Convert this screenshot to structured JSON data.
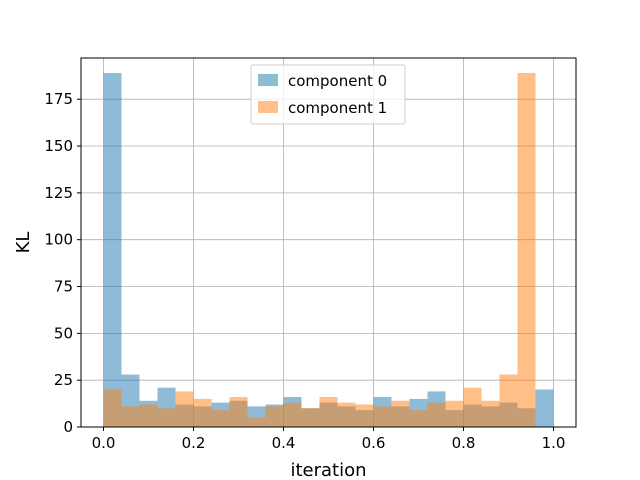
{
  "chart_data": {
    "type": "histogram",
    "title": "",
    "xlabel": "iteration",
    "ylabel": "KL",
    "xlim": [
      -0.05,
      1.05
    ],
    "ylim": [
      0,
      197
    ],
    "grid": true,
    "legend_position": "top-center",
    "bins": {
      "start": 0.0,
      "end": 1.0,
      "count": 25
    },
    "x_ticks": [
      {
        "value": 0.0,
        "label": "0.0"
      },
      {
        "value": 0.2,
        "label": "0.2"
      },
      {
        "value": 0.4,
        "label": "0.4"
      },
      {
        "value": 0.6,
        "label": "0.6"
      },
      {
        "value": 0.8,
        "label": "0.8"
      },
      {
        "value": 1.0,
        "label": "1.0"
      }
    ],
    "y_ticks": [
      {
        "value": 0,
        "label": "0"
      },
      {
        "value": 25,
        "label": "25"
      },
      {
        "value": 50,
        "label": "50"
      },
      {
        "value": 75,
        "label": "75"
      },
      {
        "value": 100,
        "label": "100"
      },
      {
        "value": 125,
        "label": "125"
      },
      {
        "value": 150,
        "label": "150"
      },
      {
        "value": 175,
        "label": "175"
      }
    ],
    "series": [
      {
        "name": "component 0",
        "color": "#1f77b4",
        "alpha": 0.5,
        "values": [
          189,
          28,
          14,
          21,
          12,
          11,
          13,
          14,
          11,
          12,
          16,
          10,
          13,
          11,
          9,
          16,
          11,
          15,
          19,
          9,
          12,
          11,
          13,
          10,
          20
        ]
      },
      {
        "name": "component 1",
        "color": "#ff7f0e",
        "alpha": 0.5,
        "values": [
          20,
          11,
          12,
          10,
          19,
          15,
          9,
          16,
          5,
          11,
          13,
          10,
          16,
          13,
          12,
          11,
          14,
          9,
          13,
          14,
          21,
          14,
          28,
          189,
          0
        ]
      }
    ]
  }
}
